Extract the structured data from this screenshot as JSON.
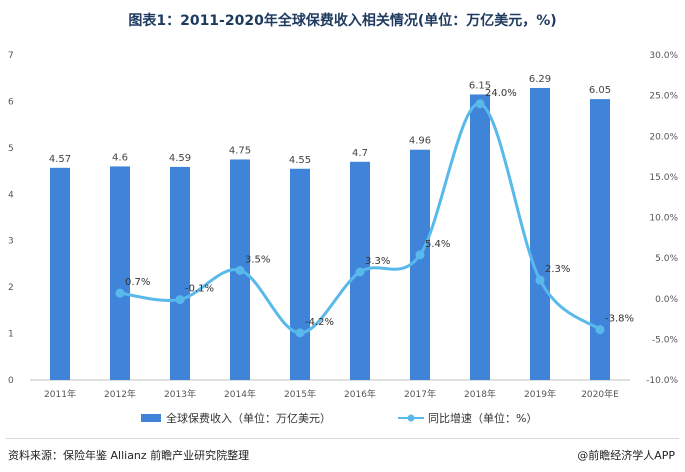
{
  "title": "图表1：2011-2020年全球保费收入相关情况(单位：万亿美元，%)",
  "source": "资料来源：保险年鉴 Allianz 前瞻产业研究院整理",
  "brand": "@前瞻经济学人APP",
  "colors": {
    "bar": "#3f84d9",
    "line": "#58b9ea",
    "title": "#1f3a5f"
  },
  "chart_data": {
    "type": "bar+line",
    "categories": [
      "2011年",
      "2012年",
      "2013年",
      "2014年",
      "2015年",
      "2016年",
      "2017年",
      "2018年",
      "2019年",
      "2020年E"
    ],
    "series": [
      {
        "name": "全球保费收入（单位：万亿美元）",
        "type": "bar",
        "axis": "left",
        "values": [
          4.57,
          4.6,
          4.59,
          4.75,
          4.55,
          4.7,
          4.96,
          6.15,
          6.29,
          6.05
        ],
        "labels": [
          "4.57",
          "4.6",
          "4.59",
          "4.75",
          "4.55",
          "4.7",
          "4.96",
          "6.15",
          "6.29",
          "6.05"
        ]
      },
      {
        "name": "同比增速（单位：%）",
        "type": "line",
        "axis": "right",
        "values": [
          null,
          0.7,
          -0.1,
          3.5,
          -4.2,
          3.3,
          5.4,
          24.0,
          2.3,
          -3.8
        ],
        "labels": [
          "",
          "0.7%",
          "-0.1%",
          "3.5%",
          "-4.2%",
          "3.3%",
          "5.4%",
          "24.0%",
          "2.3%",
          "-3.8%"
        ]
      }
    ],
    "y_left": {
      "min": 0,
      "max": 7,
      "ticks": [
        "0",
        "1",
        "2",
        "3",
        "4",
        "5",
        "6",
        "7"
      ]
    },
    "y_right": {
      "min": -10,
      "max": 30,
      "ticks": [
        "-10.0%",
        "-5.0%",
        "0.0%",
        "5.0%",
        "10.0%",
        "15.0%",
        "20.0%",
        "25.0%",
        "30.0%"
      ]
    },
    "grid": false,
    "legend_position": "bottom"
  }
}
